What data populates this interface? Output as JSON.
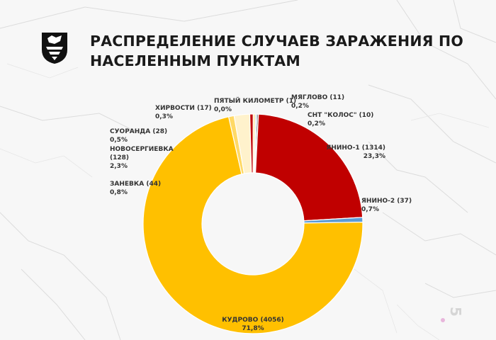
{
  "header": {
    "title": "РАСПРЕДЕЛЕНИЕ СЛУЧАЕВ ЗАРАЖЕНИЯ ПО НАСЕЛЕННЫМ ПУНКТАМ",
    "logo_icon": "coat-of-arms-icon"
  },
  "page_number": "5",
  "chart_data": {
    "type": "pie",
    "title": "",
    "slices": [
      {
        "name": "МЯГЛОВО",
        "count": "11",
        "label": "МЯГЛОВО (11)",
        "percent_label": "0,2%",
        "value": 0.2,
        "color": "#7aa0c8"
      },
      {
        "name": "СНТ \"КОЛОС\"",
        "count": "10",
        "label": "СНТ \"КОЛОС\" (10)",
        "percent_label": "0,2%",
        "value": 0.2,
        "color": "#4a4a4a"
      },
      {
        "name": "ЯНИНО-1",
        "count": "1314",
        "label": "ЯНИНО-1 (1314)",
        "percent_label": "23,3%",
        "value": 23.3,
        "color": "#c00000"
      },
      {
        "name": "ЯНИНО-2",
        "count": "37",
        "label": "ЯНИНО-2 (37)",
        "percent_label": "0,7%",
        "value": 0.7,
        "color": "#5b9bd5"
      },
      {
        "name": "КУДРОВО",
        "count": "4056",
        "label": "КУДРОВО (4056)",
        "percent_label": "71,8%",
        "value": 71.8,
        "color": "#ffc000"
      },
      {
        "name": "ЗАНЕВКА",
        "count": "44",
        "label": "ЗАНЕВКА (44)",
        "percent_label": "0,8%",
        "value": 0.8,
        "color": "#ffd966"
      },
      {
        "name": "НОВОСЕРГИЕВКА",
        "count": "128",
        "label_lines": [
          "НОВОСЕРГИЕВКА",
          "(128)"
        ],
        "percent_label": "2,3%",
        "value": 2.3,
        "color": "#fff2cc"
      },
      {
        "name": "СУОРАНДА",
        "count": "28",
        "label": "СУОРАНДА (28)",
        "percent_label": "0,5%",
        "value": 0.5,
        "color": "#c00000"
      },
      {
        "name": "ХИРВОСТИ",
        "count": "17",
        "label": "ХИРВОСТИ (17)",
        "percent_label": "0,3%",
        "value": 0.3,
        "color": "#ffe699"
      },
      {
        "name": "ПЯТЫЙ КИЛОМЕТР",
        "count": "1",
        "label": "ПЯТЫЙ КИЛОМЕТР (1)",
        "percent_label": "0,0%",
        "value": 0.0,
        "color": "#000000"
      }
    ]
  }
}
